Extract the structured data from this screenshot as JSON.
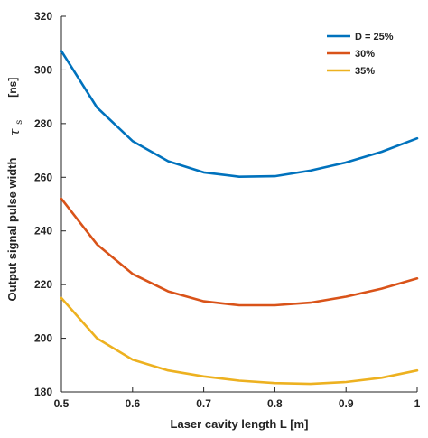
{
  "chart_data": {
    "type": "line",
    "xlabel": "Laser cavity length L [m]",
    "ylabel": "Output signal pulse width",
    "ylabel_symbol": "τ",
    "ylabel_subscript": "s",
    "ylabel_unit": "[ns]",
    "xlim": [
      0.5,
      1.0
    ],
    "ylim": [
      180,
      320
    ],
    "x_ticks": [
      "0.5",
      "0.6",
      "0.7",
      "0.8",
      "0.9",
      "1"
    ],
    "x_tick_values": [
      0.5,
      0.6,
      0.7,
      0.8,
      0.9,
      1.0
    ],
    "y_ticks": [
      "180",
      "200",
      "220",
      "240",
      "260",
      "280",
      "300",
      "320"
    ],
    "y_tick_values": [
      180,
      200,
      220,
      240,
      260,
      280,
      300,
      320
    ],
    "grid": false,
    "legend_position": "top-right",
    "x": [
      0.5,
      0.55,
      0.6,
      0.65,
      0.7,
      0.75,
      0.8,
      0.85,
      0.9,
      0.95,
      1.0
    ],
    "series": [
      {
        "name": "D = 25%",
        "color": "#0072BD",
        "values": [
          307,
          286,
          273.5,
          266,
          261.8,
          260.2,
          260.4,
          262.5,
          265.5,
          269.5,
          274.5
        ]
      },
      {
        "name": "30%",
        "color": "#D95319",
        "values": [
          252,
          235,
          224,
          217.5,
          213.8,
          212.3,
          212.3,
          213.3,
          215.5,
          218.5,
          222.3
        ]
      },
      {
        "name": "35%",
        "color": "#EDB120",
        "values": [
          215,
          200,
          192,
          188,
          185.8,
          184.2,
          183.3,
          183,
          183.7,
          185.3,
          188
        ]
      }
    ]
  }
}
